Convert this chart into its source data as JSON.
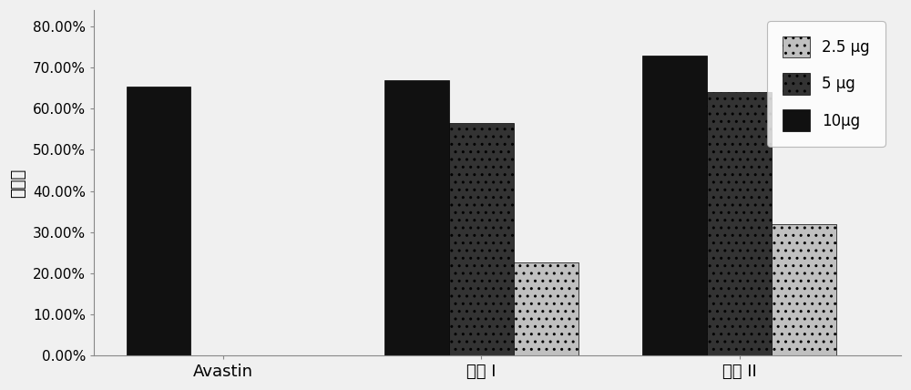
{
  "categories": [
    "Avastin",
    "多肽 I",
    "多肽 II"
  ],
  "series": [
    {
      "label": "10μg",
      "values": [
        0.655,
        0.67,
        0.73
      ],
      "color": "#111111",
      "hatch": ""
    },
    {
      "label": "5 μg",
      "values": [
        0.0,
        0.565,
        0.64
      ],
      "color": "#333333",
      "hatch": ".."
    },
    {
      "label": "2.5 μg",
      "values": [
        0.0,
        0.225,
        0.32
      ],
      "color": "#c0c0c0",
      "hatch": ".."
    }
  ],
  "ylabel": "抑制率",
  "ylim": [
    0,
    0.84
  ],
  "yticks": [
    0.0,
    0.1,
    0.2,
    0.3,
    0.4,
    0.5,
    0.6,
    0.7,
    0.8
  ],
  "ytick_labels": [
    "0.00%",
    "10.00%",
    "20.00%",
    "30.00%",
    "40.00%",
    "50.00%",
    "60.00%",
    "70.00%",
    "80.00%"
  ],
  "bar_width": 0.2,
  "group_positions": [
    0.35,
    1.15,
    1.95
  ],
  "background_color": "#f0f0f0",
  "legend_labels_order": [
    "2.5 μg",
    "5 μg",
    "10μg"
  ],
  "legend_colors": [
    "#c0c0c0",
    "#333333",
    "#111111"
  ],
  "legend_hatches": [
    "..",
    "..",
    ""
  ],
  "legend_fontsize": 12,
  "ylabel_fontsize": 13,
  "xlabel_fontsize": 13,
  "tick_fontsize": 11
}
